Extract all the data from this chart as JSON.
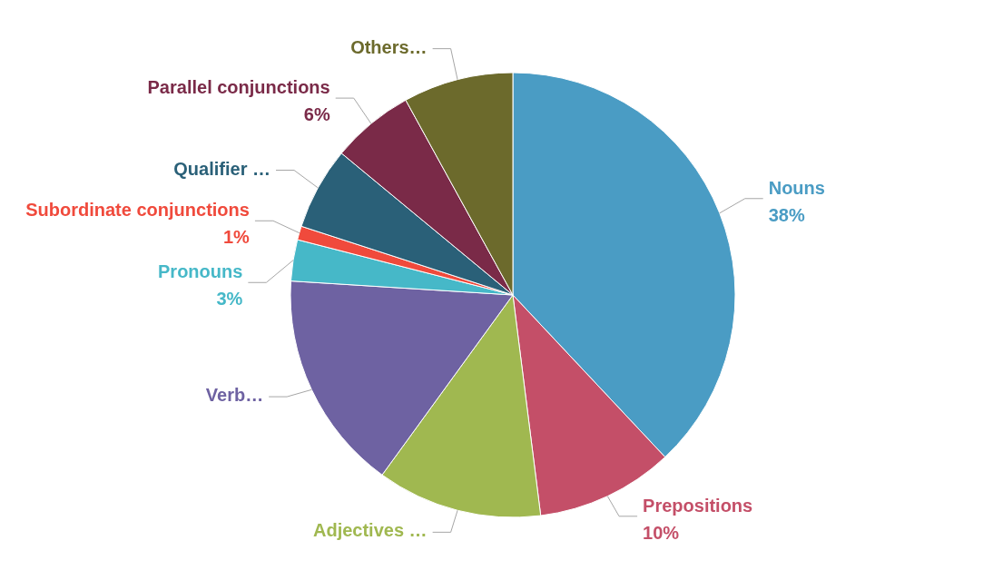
{
  "chart_data": {
    "type": "pie",
    "categories": [
      "Nouns",
      "Prepositions",
      "Adjectives …",
      "Verb…",
      "Pronouns",
      "Subordinate conjunctions",
      "Qualifier …",
      "Parallel conjunctions",
      "Others…"
    ],
    "values": [
      38,
      10,
      12,
      16,
      3,
      1,
      6,
      6,
      8
    ],
    "value_labels": [
      "38%",
      "10%",
      null,
      null,
      "3%",
      "1%",
      null,
      "6%",
      null
    ],
    "colors": [
      "#4a9cc4",
      "#c44f68",
      "#a0b850",
      "#6e62a2",
      "#46b8c8",
      "#f04a3c",
      "#2a6078",
      "#7a2a48",
      "#6c6a2c"
    ],
    "legend": false
  }
}
